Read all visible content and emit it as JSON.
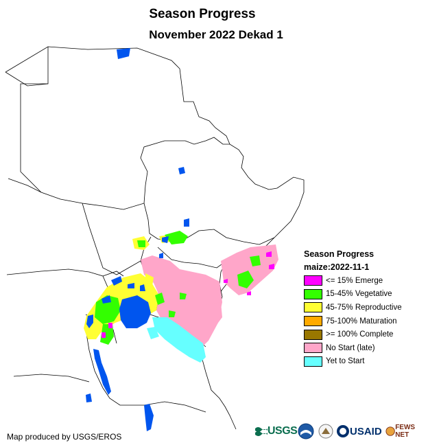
{
  "title": "Season Progress",
  "subtitle": "November 2022 Dekad 1",
  "legend": {
    "title": "Season Progress",
    "subtitle": "maize:2022-11-1",
    "items": [
      {
        "label": "<= 15% Emerge",
        "color": "#ff00ff"
      },
      {
        "label": "15-45% Vegetative",
        "color": "#33ff00"
      },
      {
        "label": "45-75% Reproductive",
        "color": "#ffff33"
      },
      {
        "label": "75-100% Maturation",
        "color": "#ffaa00"
      },
      {
        "label": ">= 100% Complete",
        "color": "#997700"
      },
      {
        "label": "No Start (late)",
        "color": "#ffa6c9"
      },
      {
        "label": "Yet to Start",
        "color": "#66ffff"
      }
    ]
  },
  "colors": {
    "water": "#0055ee",
    "border": "#000000"
  },
  "credit": "Map produced by USGS/EROS",
  "logos": {
    "usgs": "USGS",
    "usaid": "USAID",
    "fews": "FEWS NET"
  }
}
